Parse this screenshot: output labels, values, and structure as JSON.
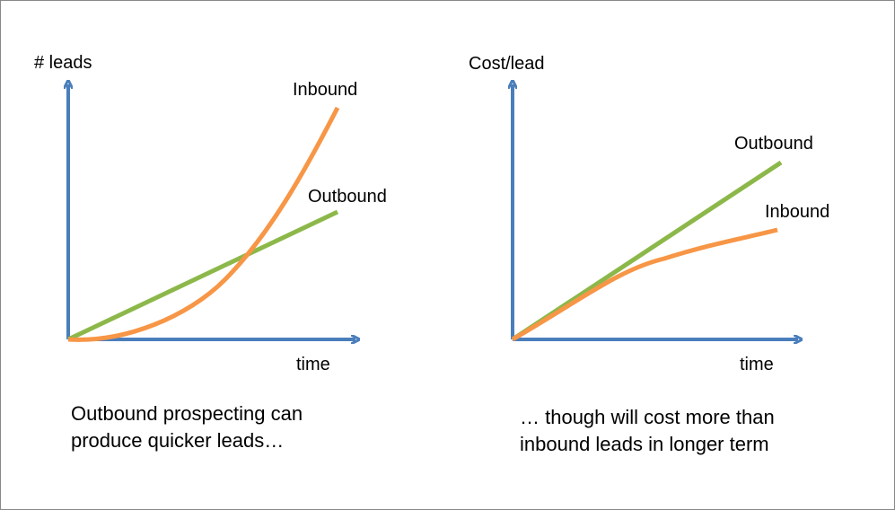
{
  "panels": [
    {
      "y_label": "# leads",
      "x_label": "time",
      "inbound_label": "Inbound",
      "outbound_label": "Outbound",
      "caption": [
        "Outbound prospecting can",
        "produce quicker leads…"
      ]
    },
    {
      "y_label": "Cost/lead",
      "x_label": "time",
      "inbound_label": "Inbound",
      "outbound_label": "Outbound",
      "caption": [
        "… though will cost more than",
        "inbound leads in longer term"
      ]
    }
  ]
}
